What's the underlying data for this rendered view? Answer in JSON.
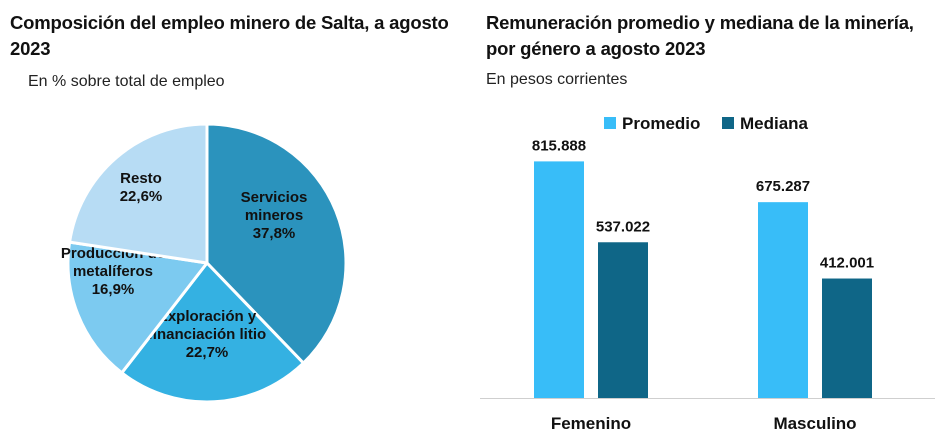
{
  "chart_data": [
    {
      "type": "pie",
      "title": "Composición del empleo minero de Salta, a agosto 2023",
      "subtitle": "En % sobre total de empleo",
      "start_angle_deg": 0,
      "slices": [
        {
          "label": [
            "Servicios",
            "mineros"
          ],
          "value_label": "37,8%",
          "value": 37.8,
          "color": "#2b93bd"
        },
        {
          "label": [
            "Exploración y",
            "financiación litio"
          ],
          "value_label": "22,7%",
          "value": 22.7,
          "color": "#34b1e2"
        },
        {
          "label": [
            "Producción de",
            "metalíferos"
          ],
          "value_label": "16,9%",
          "value": 16.9,
          "color": "#7ccaf0"
        },
        {
          "label": [
            "Resto"
          ],
          "value_label": "22,6%",
          "value": 22.6,
          "color": "#b7dcf4"
        }
      ]
    },
    {
      "type": "bar",
      "title": "Remuneración promedio y mediana de la minería, por género a agosto 2023",
      "subtitle": "En pesos corrientes",
      "categories": [
        "Femenino",
        "Masculino"
      ],
      "series": [
        {
          "name": "Promedio",
          "color": "#38bdf8",
          "values": [
            815888,
            675287
          ],
          "labels": [
            "815.888",
            "675.287"
          ]
        },
        {
          "name": "Mediana",
          "color": "#0f6687",
          "values": [
            537022,
            412001
          ],
          "labels": [
            "537.022",
            "412.001"
          ]
        }
      ],
      "ylim": [
        0,
        1000000
      ],
      "legend": "top"
    }
  ],
  "texts": {
    "left_title": "Composición del empleo minero de Salta, a agosto 2023",
    "left_subtitle": "En % sobre total de empleo",
    "right_title": "Remuneración promedio y mediana de la minería, por género a agosto 2023",
    "right_subtitle": "En pesos corrientes"
  }
}
